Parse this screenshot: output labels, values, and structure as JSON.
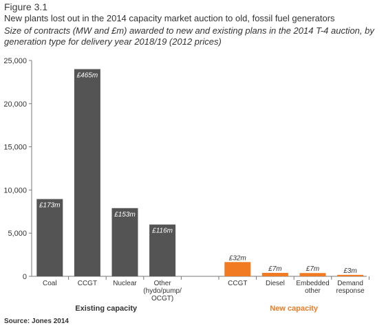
{
  "figure_label": "Figure 3.1",
  "title": "New plants lost out in the 2014 capacity market auction to old, fossil fuel generators",
  "subtitle": "Size of contracts (MW and £m) awarded to new and existing plans in the 2014 T-4 auction, by generation type for delivery year 2018/19 (2012 prices)",
  "source": "Source: Jones 2014",
  "colors": {
    "existing": "#545454",
    "new": "#f07b22",
    "existing_label": "#ffffff",
    "new_label": "#333333"
  },
  "chart_data": {
    "type": "bar",
    "ylim": [
      0,
      25000
    ],
    "yticks": [
      0,
      5000,
      10000,
      15000,
      20000,
      25000
    ],
    "ytick_labels": [
      "0",
      "5,000",
      "10,000",
      "15,000",
      "20,000",
      "25,000"
    ],
    "grid": false,
    "groups": [
      {
        "name": "Existing capacity",
        "color": "existing",
        "bars": [
          {
            "category": [
              "Coal"
            ],
            "value": 8950,
            "label": "£173m"
          },
          {
            "category": [
              "CCGT"
            ],
            "value": 24000,
            "label": "£465m"
          },
          {
            "category": [
              "Nuclear"
            ],
            "value": 7900,
            "label": "£153m"
          },
          {
            "category": [
              "Other",
              "(hydo/pump/",
              "OCGT)"
            ],
            "value": 6000,
            "label": "£116m"
          }
        ]
      },
      {
        "name": "New capacity",
        "color": "new",
        "bars": [
          {
            "category": [
              "CCGT"
            ],
            "value": 1650,
            "label": "£32m"
          },
          {
            "category": [
              "Diesel"
            ],
            "value": 400,
            "label": "£7m"
          },
          {
            "category": [
              "Embedded",
              "other"
            ],
            "value": 380,
            "label": "£7m"
          },
          {
            "category": [
              "Demand",
              "response"
            ],
            "value": 170,
            "label": "£3m"
          }
        ]
      }
    ]
  }
}
